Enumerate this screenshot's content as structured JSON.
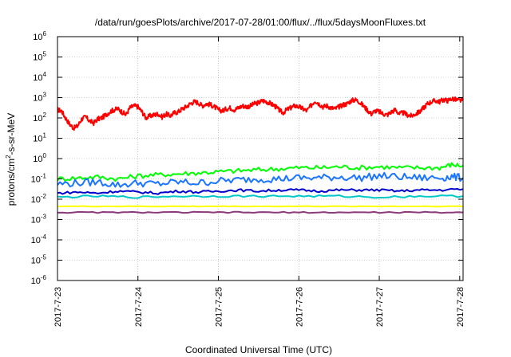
{
  "chart_data": {
    "type": "line",
    "title": "/data/run/goesPlots/archive/2017-07-28/01:00/flux/../flux/5daysMoonFluxes.txt",
    "xlabel": "Coordinated Universal Time (UTC)",
    "ylabel_base": "protons/cm",
    "ylabel_sup": "2",
    "ylabel_rest": "-s-sr-MeV",
    "yscale": "log",
    "ylim_exp": [
      -6,
      6
    ],
    "y_tick_exponents": [
      -6,
      -5,
      -4,
      -3,
      -2,
      -1,
      0,
      1,
      2,
      3,
      4,
      5,
      6
    ],
    "y_tick_base": "10",
    "xlim": [
      "2017-07-23",
      "2017-07-28 01:00"
    ],
    "x_ticks": [
      "2017-7-23",
      "2017-7-24",
      "2017-7-25",
      "2017-7-26",
      "2017-7-27",
      "2017-7-28"
    ],
    "grid": true,
    "series": [
      {
        "color": "#ff0000",
        "x_days": [
          0,
          0.05,
          0.1,
          0.15,
          0.2,
          0.25,
          0.3,
          0.35,
          0.4,
          0.45,
          0.5,
          0.55,
          0.6,
          0.65,
          0.7,
          0.75,
          0.8,
          0.85,
          0.9,
          0.95,
          1.0,
          1.05,
          1.1,
          1.15,
          1.2,
          1.25,
          1.3,
          1.35,
          1.4,
          1.45,
          1.5,
          1.55,
          1.6,
          1.65,
          1.7,
          1.75,
          1.8,
          1.85,
          1.9,
          1.95,
          2.0,
          2.05,
          2.1,
          2.15,
          2.2,
          2.25,
          2.3,
          2.35,
          2.4,
          2.45,
          2.5,
          2.55,
          2.6,
          2.65,
          2.7,
          2.75,
          2.8,
          2.85,
          2.9,
          2.95,
          3.0,
          3.05,
          3.1,
          3.15,
          3.2,
          3.25,
          3.3,
          3.35,
          3.4,
          3.45,
          3.5,
          3.55,
          3.6,
          3.65,
          3.7,
          3.75,
          3.8,
          3.85,
          3.9,
          3.95,
          4.0,
          4.05,
          4.1,
          4.15,
          4.2,
          4.25,
          4.3,
          4.35,
          4.4,
          4.45,
          4.5,
          4.55,
          4.6,
          4.65,
          4.7,
          4.75,
          4.8,
          4.85,
          4.9,
          4.95,
          5.0,
          5.04
        ],
        "log10_values": [
          2.4,
          2.35,
          2.0,
          1.7,
          1.5,
          1.6,
          1.95,
          2.05,
          1.85,
          1.75,
          1.95,
          2.0,
          2.15,
          2.3,
          2.4,
          2.45,
          2.3,
          2.15,
          2.5,
          2.6,
          2.55,
          2.3,
          2.0,
          2.1,
          2.15,
          2.2,
          2.05,
          2.2,
          2.1,
          2.25,
          2.3,
          2.45,
          2.55,
          2.7,
          2.8,
          2.75,
          2.6,
          2.7,
          2.65,
          2.55,
          2.4,
          2.35,
          2.45,
          2.5,
          2.4,
          2.5,
          2.6,
          2.55,
          2.6,
          2.7,
          2.75,
          2.85,
          2.8,
          2.7,
          2.6,
          2.4,
          2.25,
          2.4,
          2.5,
          2.6,
          2.55,
          2.45,
          2.35,
          2.6,
          2.85,
          2.7,
          2.55,
          2.6,
          2.5,
          2.45,
          2.55,
          2.65,
          2.7,
          2.85,
          2.9,
          2.8,
          2.6,
          2.4,
          2.2,
          2.35,
          2.3,
          2.2,
          2.15,
          2.3,
          2.4,
          2.2,
          2.25,
          2.15,
          2.1,
          2.2,
          2.3,
          2.5,
          2.7,
          2.8,
          2.85,
          2.8,
          2.9,
          2.85,
          2.95,
          2.9,
          2.85,
          2.9
        ]
      },
      {
        "color": "#00ff00",
        "x_days": [
          0,
          0.25,
          0.5,
          0.75,
          1.0,
          1.25,
          1.5,
          1.75,
          2.0,
          2.25,
          2.5,
          2.75,
          3.0,
          3.25,
          3.5,
          3.75,
          4.0,
          4.25,
          4.5,
          4.75,
          4.9,
          5.04
        ],
        "log10_values": [
          -1.0,
          -0.95,
          -0.9,
          -1.0,
          -0.85,
          -0.8,
          -0.75,
          -0.7,
          -0.65,
          -0.6,
          -0.55,
          -0.5,
          -0.45,
          -0.45,
          -0.4,
          -0.45,
          -0.4,
          -0.45,
          -0.45,
          -0.45,
          -0.3,
          -0.35
        ]
      },
      {
        "color": "#1a75ff",
        "x_days": [
          0,
          0.25,
          0.5,
          0.75,
          1.0,
          1.25,
          1.5,
          1.75,
          2.0,
          2.25,
          2.5,
          2.75,
          3.0,
          3.25,
          3.5,
          3.75,
          4.0,
          4.25,
          4.5,
          4.75,
          4.9,
          5.04
        ],
        "log10_values": [
          -1.25,
          -1.2,
          -1.15,
          -1.3,
          -1.2,
          -1.25,
          -1.15,
          -1.2,
          -1.1,
          -1.05,
          -1.0,
          -1.0,
          -0.95,
          -0.95,
          -0.9,
          -0.95,
          -0.85,
          -0.9,
          -0.95,
          -0.95,
          -0.9,
          -0.95
        ]
      },
      {
        "color": "#0000cc",
        "x_days": [
          0,
          0.25,
          0.5,
          0.75,
          1.0,
          1.25,
          1.5,
          1.75,
          2.0,
          2.25,
          2.5,
          2.75,
          3.0,
          3.25,
          3.5,
          3.75,
          4.0,
          4.25,
          4.5,
          4.75,
          5.04
        ],
        "log10_values": [
          -1.7,
          -1.65,
          -1.7,
          -1.6,
          -1.65,
          -1.7,
          -1.6,
          -1.65,
          -1.6,
          -1.55,
          -1.6,
          -1.55,
          -1.55,
          -1.6,
          -1.55,
          -1.55,
          -1.55,
          -1.6,
          -1.55,
          -1.55,
          -1.5
        ]
      },
      {
        "color": "#00c8c8",
        "x_days": [
          0,
          0.5,
          1.0,
          1.5,
          2.0,
          2.5,
          3.0,
          3.5,
          4.0,
          4.5,
          5.04
        ],
        "log10_values": [
          -1.9,
          -1.85,
          -1.9,
          -1.85,
          -1.85,
          -1.85,
          -1.85,
          -1.85,
          -1.9,
          -1.85,
          -1.85
        ]
      },
      {
        "color": "#ffff00",
        "x_days": [
          0,
          0.5,
          1.0,
          1.5,
          2.0,
          2.5,
          3.0,
          3.5,
          4.0,
          4.5,
          5.04
        ],
        "log10_values": [
          -2.35,
          -2.35,
          -2.35,
          -2.35,
          -2.35,
          -2.35,
          -2.35,
          -2.35,
          -2.35,
          -2.35,
          -2.35
        ]
      },
      {
        "color": "#8b3a7a",
        "x_days": [
          0,
          0.5,
          1.0,
          1.5,
          2.0,
          2.5,
          3.0,
          3.5,
          4.0,
          4.5,
          5.04
        ],
        "log10_values": [
          -2.65,
          -2.65,
          -2.65,
          -2.65,
          -2.65,
          -2.65,
          -2.65,
          -2.65,
          -2.65,
          -2.65,
          -2.65
        ]
      }
    ]
  }
}
